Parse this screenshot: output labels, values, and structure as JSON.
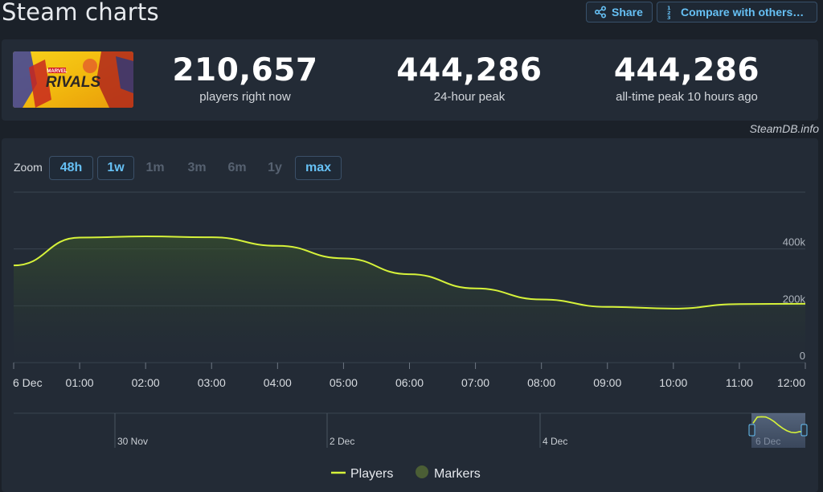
{
  "page": {
    "title": "Steam charts"
  },
  "toolbar": {
    "share_label": "Share",
    "compare_label": "Compare with others…",
    "compare_icon_text": "1/2/3"
  },
  "stats": {
    "current": {
      "value": "210,657",
      "label": "players right now"
    },
    "peak_24h": {
      "value": "444,286",
      "label": "24-hour peak"
    },
    "all_time": {
      "value": "444,286",
      "label": "all-time peak 10 hours ago"
    }
  },
  "banner": {
    "game_logo_text": "RIVALS",
    "brand_text": "MARVEL"
  },
  "attribution": "SteamDB.info",
  "zoom": {
    "label": "Zoom",
    "options": [
      "48h",
      "1w",
      "1m",
      "3m",
      "6m",
      "1y",
      "max"
    ],
    "active": [
      "48h",
      "1w",
      "max"
    ]
  },
  "colors": {
    "series": "#d6f23a",
    "marker": "#4b5e35",
    "accent": "#66c0f4",
    "background": "#1b2129",
    "panel": "#232b36"
  },
  "chart_data": {
    "type": "line",
    "series": [
      {
        "name": "Players",
        "x": [
          "00:00",
          "01:00",
          "02:00",
          "03:00",
          "04:00",
          "05:00",
          "06:00",
          "07:00",
          "08:00",
          "09:00",
          "10:00",
          "11:00",
          "12:00"
        ],
        "values": [
          342000,
          440000,
          444286,
          441000,
          411000,
          367000,
          311000,
          261000,
          222000,
          196000,
          190000,
          206000,
          207000
        ]
      }
    ],
    "x_tick_labels": [
      "6 Dec",
      "01:00",
      "02:00",
      "03:00",
      "04:00",
      "05:00",
      "06:00",
      "07:00",
      "08:00",
      "09:00",
      "10:00",
      "11:00",
      "12:00"
    ],
    "y_ticks": [
      0,
      200000,
      400000
    ],
    "y_tick_labels": [
      "0",
      "200k",
      "400k"
    ],
    "ylim": [
      0,
      600000
    ],
    "grid": true,
    "legend": {
      "placement": "bottom",
      "entries": [
        "Players",
        "Markers"
      ]
    },
    "navigator": {
      "labels": [
        "30 Nov",
        "2 Dec",
        "4 Dec",
        "6 Dec"
      ]
    }
  }
}
